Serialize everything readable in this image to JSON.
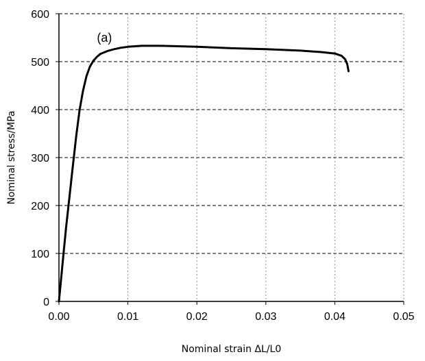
{
  "chart_data": {
    "type": "line",
    "title": "",
    "xlabel": "Nominal strain ΔL/L0",
    "ylabel": "Nominal stress/MPa",
    "xlim": [
      0,
      0.05
    ],
    "ylim": [
      0,
      600
    ],
    "x_ticks": [
      "0.00",
      "0.01",
      "0.02",
      "0.03",
      "0.04",
      "0.05"
    ],
    "y_ticks": [
      "0",
      "100",
      "200",
      "300",
      "400",
      "500",
      "600"
    ],
    "x_grid": "dotted vertical",
    "y_grid": "dashed horizontal",
    "legend": "none",
    "annotations": [
      {
        "text": "(a)",
        "x": 0.0055,
        "y": 550
      }
    ],
    "series": [
      {
        "name": "(a)",
        "x": [
          0.0,
          0.0005,
          0.001,
          0.0015,
          0.002,
          0.0025,
          0.003,
          0.0035,
          0.004,
          0.0045,
          0.005,
          0.0055,
          0.006,
          0.007,
          0.008,
          0.009,
          0.01,
          0.012,
          0.015,
          0.02,
          0.025,
          0.03,
          0.035,
          0.038,
          0.04,
          0.041,
          0.0415,
          0.0418,
          0.042
        ],
        "y": [
          0,
          75,
          150,
          215,
          280,
          345,
          400,
          440,
          470,
          490,
          502,
          510,
          516,
          522,
          526,
          529,
          531,
          533,
          533,
          531,
          528,
          526,
          523,
          520,
          517,
          512,
          505,
          495,
          480
        ]
      }
    ]
  }
}
